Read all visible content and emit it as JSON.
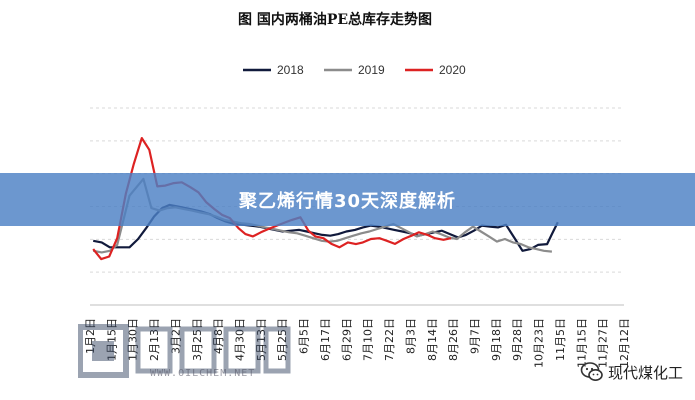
{
  "banner": {
    "text": "聚乙烯行情30天深度解析"
  },
  "watermark": {
    "text": "WWW.OILCHEM.NET"
  },
  "brand": {
    "text": "现代煤化工",
    "icon": "wechat-bubble-icon"
  },
  "chart_data": {
    "type": "line",
    "title": "图   国内两桶油PE总库存走势图",
    "xlabel": "",
    "ylabel": "",
    "legend": "top-center",
    "grid": true,
    "x_tick_labels": [
      "1月2日",
      "1月15日",
      "1月30日",
      "2月13日",
      "3月2日",
      "3月25日",
      "4月8日",
      "4月30日",
      "5月13日",
      "5月25日",
      "6月5日",
      "6月17日",
      "6月29日",
      "7月10日",
      "7月22日",
      "8月3日",
      "8月14日",
      "8月26日",
      "9月7日",
      "9月18日",
      "9月28日",
      "10月23日",
      "11月5日",
      "11月15日",
      "11月27日",
      "12月12日"
    ],
    "x_extent": [
      0,
      100
    ],
    "ylim": [
      0,
      100
    ],
    "series": [
      {
        "name": "2018",
        "color": "#111a3c",
        "points": [
          [
            0.6,
            32.6
          ],
          [
            2.2,
            31.8
          ],
          [
            3.7,
            29.3
          ],
          [
            5.9,
            29.3
          ],
          [
            7.4,
            29.3
          ],
          [
            9.0,
            33.5
          ],
          [
            10.5,
            39.0
          ],
          [
            12.0,
            44.9
          ],
          [
            13.5,
            49.2
          ],
          [
            14.9,
            50.8
          ],
          [
            16.4,
            50.0
          ],
          [
            17.9,
            49.2
          ],
          [
            19.4,
            48.3
          ],
          [
            20.8,
            47.5
          ],
          [
            22.4,
            46.2
          ],
          [
            23.9,
            44.1
          ],
          [
            25.4,
            42.4
          ],
          [
            27.0,
            41.1
          ],
          [
            28.7,
            40.7
          ],
          [
            30.1,
            40.3
          ],
          [
            31.6,
            39.8
          ],
          [
            33.0,
            39.0
          ],
          [
            34.6,
            38.1
          ],
          [
            36.1,
            37.3
          ],
          [
            37.6,
            37.7
          ],
          [
            39.2,
            38.1
          ],
          [
            40.6,
            37.3
          ],
          [
            42.1,
            36.4
          ],
          [
            43.5,
            35.6
          ],
          [
            45.0,
            35.2
          ],
          [
            46.5,
            36.0
          ],
          [
            48.0,
            37.3
          ],
          [
            49.6,
            38.1
          ],
          [
            51.1,
            39.4
          ],
          [
            52.6,
            40.3
          ],
          [
            54.0,
            39.8
          ],
          [
            55.5,
            39.0
          ],
          [
            57.0,
            38.1
          ],
          [
            58.5,
            37.3
          ],
          [
            60.0,
            36.4
          ],
          [
            61.5,
            35.2
          ],
          [
            63.0,
            36.0
          ],
          [
            64.5,
            36.9
          ],
          [
            65.9,
            37.7
          ],
          [
            67.4,
            36.0
          ],
          [
            68.9,
            34.3
          ],
          [
            70.4,
            35.6
          ],
          [
            71.9,
            37.7
          ],
          [
            73.4,
            40.3
          ],
          [
            74.9,
            39.8
          ],
          [
            76.4,
            39.4
          ],
          [
            77.9,
            40.7
          ],
          [
            79.6,
            33.5
          ],
          [
            81.0,
            27.5
          ],
          [
            82.5,
            28.4
          ],
          [
            83.9,
            30.5
          ],
          [
            85.6,
            30.9
          ],
          [
            86.5,
            36.0
          ],
          [
            87.6,
            42.0
          ]
        ]
      },
      {
        "name": "2019",
        "color": "#8c8c8c",
        "points": [
          [
            0.6,
            27.5
          ],
          [
            2.2,
            26.7
          ],
          [
            3.7,
            27.5
          ],
          [
            5.1,
            30.5
          ],
          [
            7.4,
            55.5
          ],
          [
            8.7,
            59.8
          ],
          [
            10.0,
            64.0
          ],
          [
            11.5,
            49.2
          ],
          [
            13.0,
            47.9
          ],
          [
            14.5,
            49.2
          ],
          [
            16.0,
            49.6
          ],
          [
            17.6,
            48.7
          ],
          [
            19.1,
            47.9
          ],
          [
            20.6,
            47.0
          ],
          [
            22.1,
            46.2
          ],
          [
            23.6,
            44.9
          ],
          [
            25.2,
            43.2
          ],
          [
            26.7,
            42.4
          ],
          [
            28.3,
            41.5
          ],
          [
            29.8,
            41.1
          ],
          [
            31.3,
            40.3
          ],
          [
            32.8,
            39.4
          ],
          [
            34.3,
            38.6
          ],
          [
            35.8,
            37.7
          ],
          [
            37.3,
            36.9
          ],
          [
            38.8,
            36.4
          ],
          [
            40.3,
            35.2
          ],
          [
            41.8,
            33.9
          ],
          [
            43.4,
            32.6
          ],
          [
            44.8,
            32.2
          ],
          [
            46.3,
            32.6
          ],
          [
            47.8,
            33.9
          ],
          [
            49.3,
            35.2
          ],
          [
            50.8,
            36.4
          ],
          [
            52.3,
            37.3
          ],
          [
            53.8,
            38.6
          ],
          [
            55.3,
            39.8
          ],
          [
            56.8,
            41.1
          ],
          [
            58.3,
            39.0
          ],
          [
            59.8,
            36.9
          ],
          [
            61.2,
            34.8
          ],
          [
            62.8,
            36.0
          ],
          [
            64.2,
            37.3
          ],
          [
            65.7,
            36.0
          ],
          [
            67.2,
            34.3
          ],
          [
            68.7,
            33.5
          ],
          [
            70.2,
            36.9
          ],
          [
            71.7,
            39.8
          ],
          [
            73.2,
            37.3
          ],
          [
            74.7,
            34.8
          ],
          [
            76.2,
            32.2
          ],
          [
            77.7,
            33.5
          ],
          [
            79.2,
            31.8
          ],
          [
            80.6,
            31.0
          ],
          [
            82.1,
            29.3
          ],
          [
            83.6,
            28.4
          ],
          [
            85.0,
            27.5
          ],
          [
            86.5,
            27.1
          ]
        ]
      },
      {
        "name": "2020",
        "color": "#dd2222",
        "points": [
          [
            0.6,
            28.4
          ],
          [
            2.1,
            23.3
          ],
          [
            3.6,
            24.6
          ],
          [
            5.1,
            33.9
          ],
          [
            6.7,
            56.4
          ],
          [
            8.2,
            71.6
          ],
          [
            9.7,
            84.7
          ],
          [
            11.1,
            78.8
          ],
          [
            12.6,
            60.2
          ],
          [
            14.1,
            60.6
          ],
          [
            15.7,
            61.9
          ],
          [
            17.2,
            62.3
          ],
          [
            18.8,
            59.8
          ],
          [
            20.3,
            57.2
          ],
          [
            21.8,
            52.1
          ],
          [
            23.3,
            48.7
          ],
          [
            24.7,
            45.8
          ],
          [
            26.2,
            44.1
          ],
          [
            27.8,
            39.0
          ],
          [
            29.1,
            36.0
          ],
          [
            30.5,
            34.8
          ],
          [
            32.0,
            36.9
          ],
          [
            33.4,
            38.6
          ],
          [
            35.0,
            40.3
          ],
          [
            36.5,
            41.9
          ],
          [
            37.8,
            43.2
          ],
          [
            39.4,
            44.5
          ],
          [
            40.9,
            37.7
          ],
          [
            42.2,
            34.8
          ],
          [
            43.7,
            33.9
          ],
          [
            45.2,
            31.0
          ],
          [
            46.7,
            29.3
          ],
          [
            48.3,
            31.8
          ],
          [
            49.8,
            30.9
          ],
          [
            51.1,
            31.8
          ],
          [
            52.6,
            33.5
          ],
          [
            54.2,
            33.9
          ],
          [
            55.6,
            32.6
          ],
          [
            57.1,
            31.0
          ],
          [
            58.7,
            33.5
          ],
          [
            60.2,
            35.2
          ],
          [
            61.6,
            36.9
          ],
          [
            63.2,
            35.6
          ],
          [
            64.6,
            33.9
          ],
          [
            66.2,
            33.1
          ],
          [
            67.6,
            33.9
          ]
        ]
      }
    ]
  }
}
